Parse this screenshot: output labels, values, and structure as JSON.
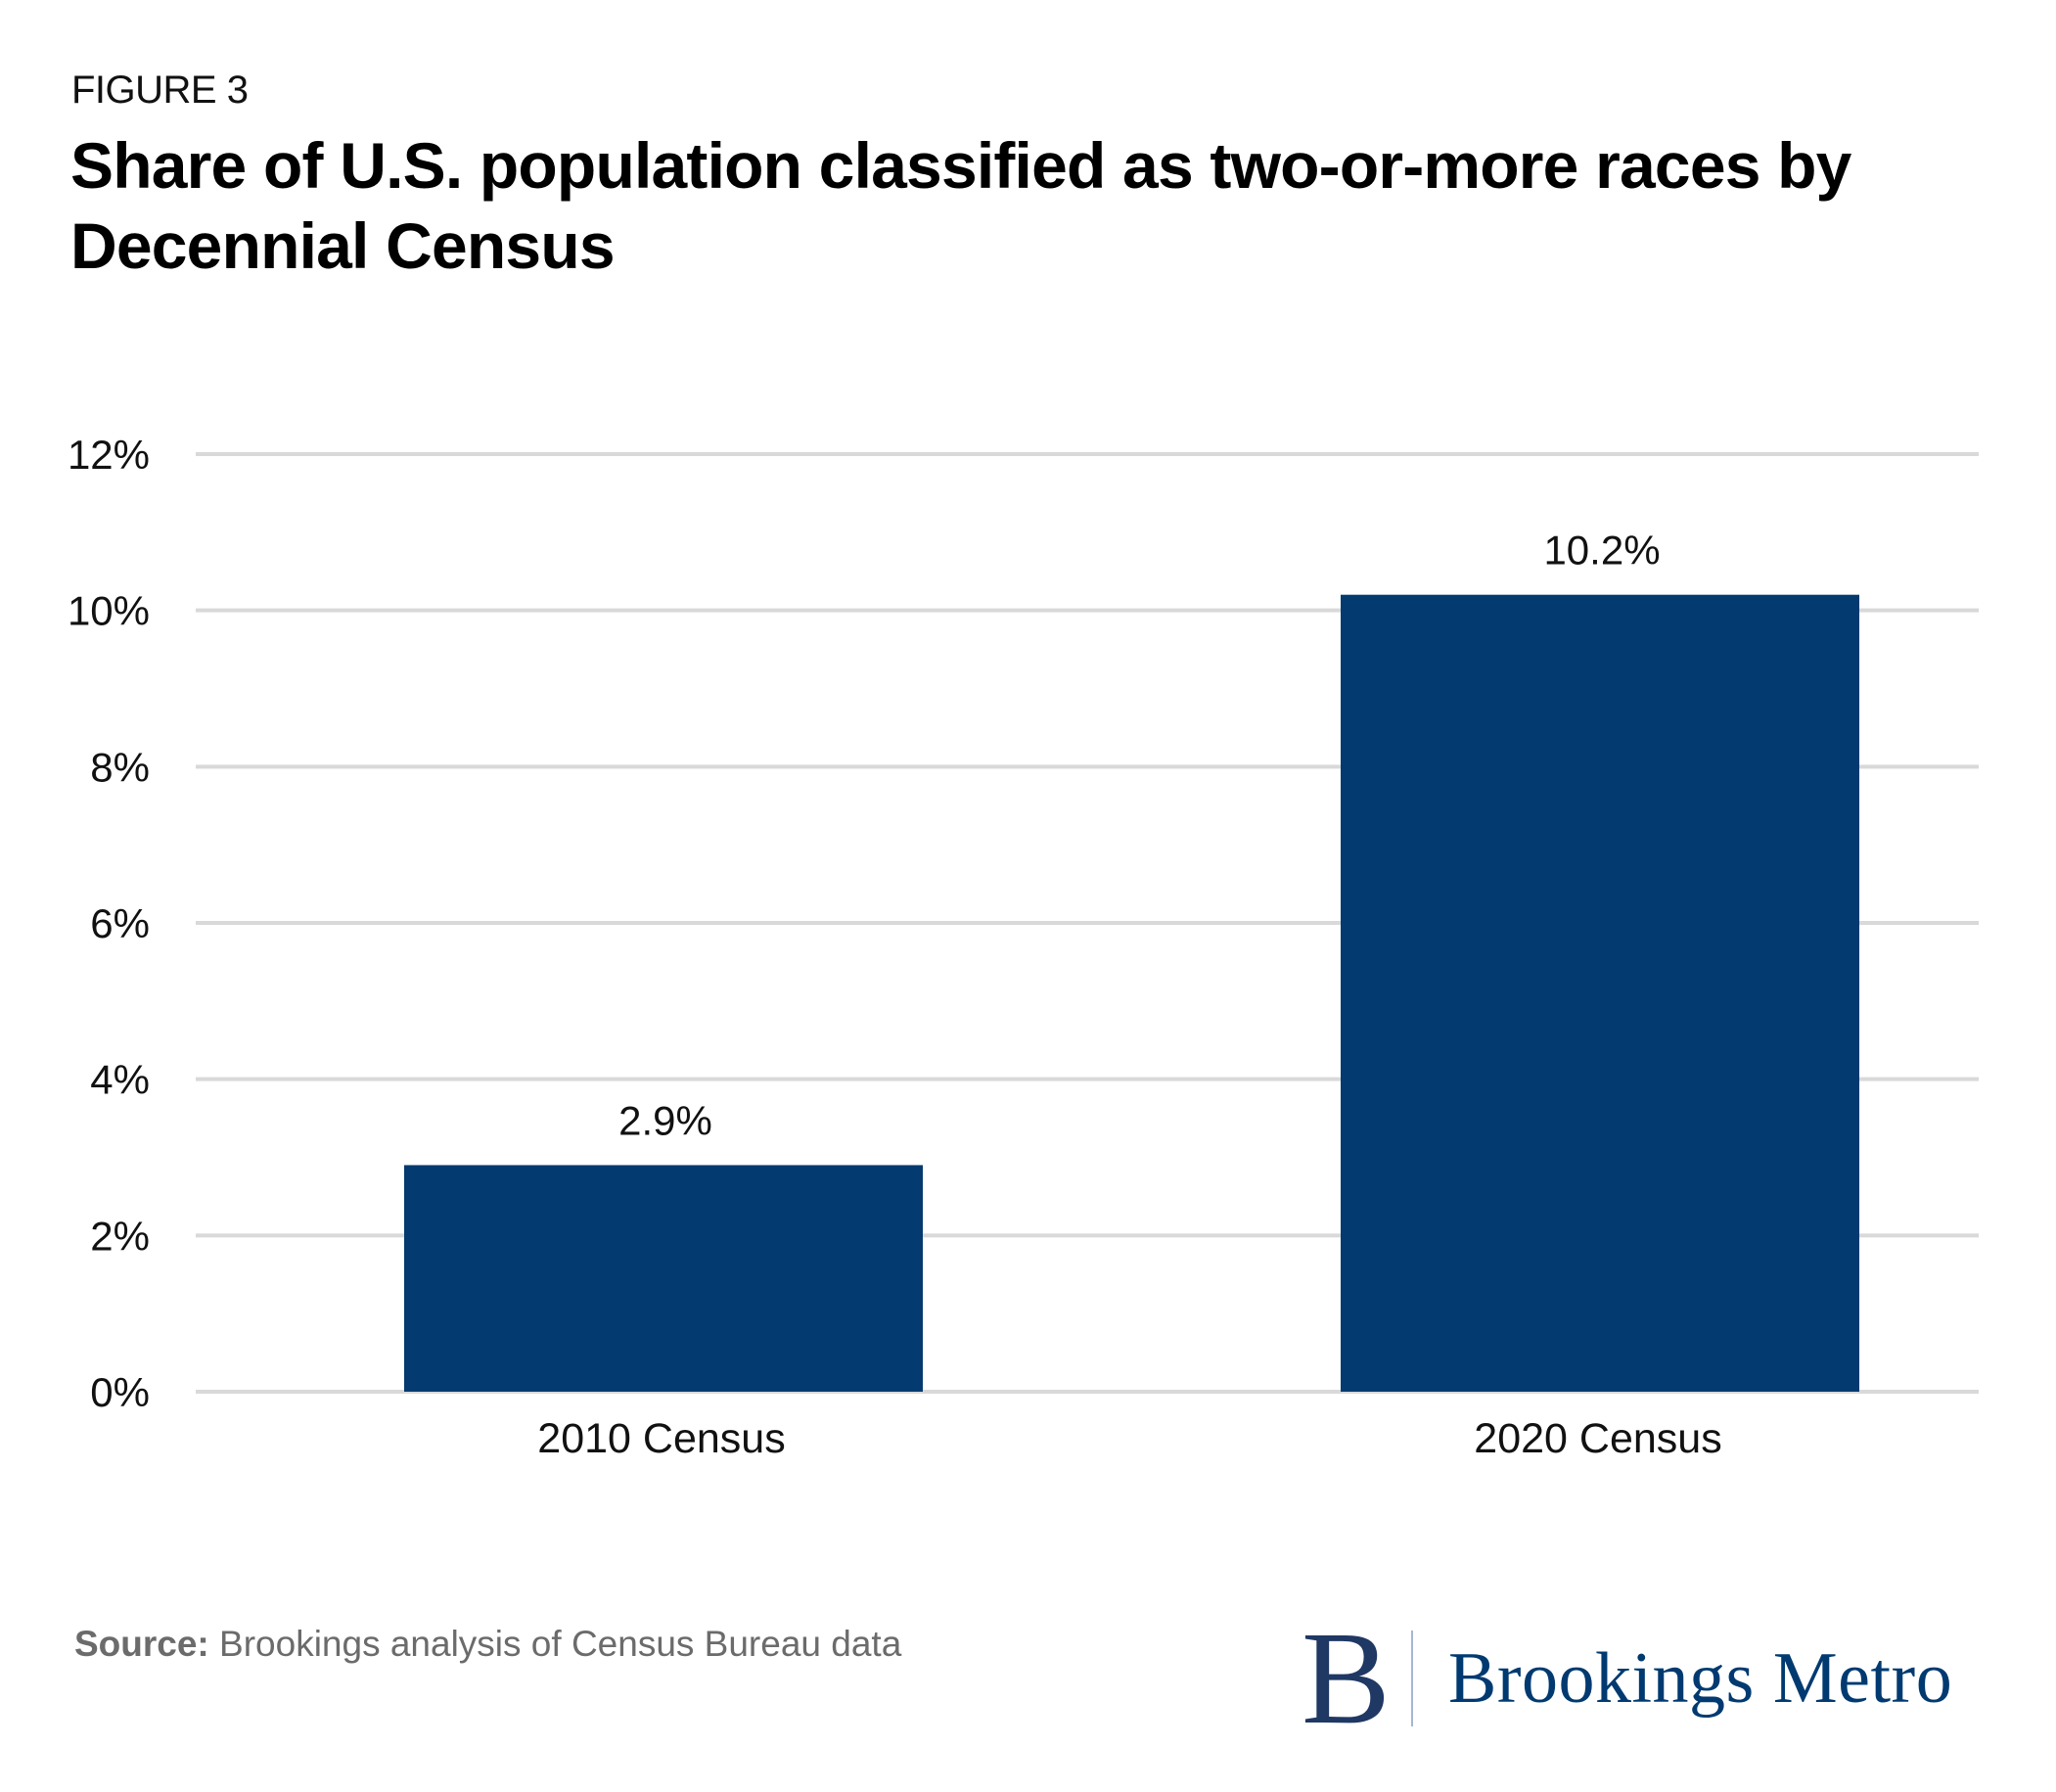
{
  "header": {
    "figure_label": "FIGURE 3",
    "title": "Share of U.S. population classified as two-or-more races by Decennial Census"
  },
  "footer": {
    "source_label": "Source:",
    "source_text": " Brookings analysis of Census Bureau data",
    "logo_mark": "B",
    "logo_text": "Brookings Metro"
  },
  "colors": {
    "bar": "#033a70",
    "grid": "#d9d9d9",
    "logo": "#003a70"
  },
  "chart_data": {
    "type": "bar",
    "title": "Share of U.S. population classified as two-or-more races by Decennial Census",
    "xlabel": "",
    "ylabel": "",
    "categories": [
      "2010 Census",
      "2020 Census"
    ],
    "values": [
      2.9,
      10.2
    ],
    "data_labels": [
      "2.9%",
      "10.2%"
    ],
    "unit": "%",
    "ylim": [
      0,
      12
    ],
    "yticks": [
      0,
      2,
      4,
      6,
      8,
      10,
      12
    ],
    "ytick_labels": [
      "0%",
      "2%",
      "4%",
      "6%",
      "8%",
      "10%",
      "12%"
    ],
    "grid": true,
    "legend": "none"
  }
}
